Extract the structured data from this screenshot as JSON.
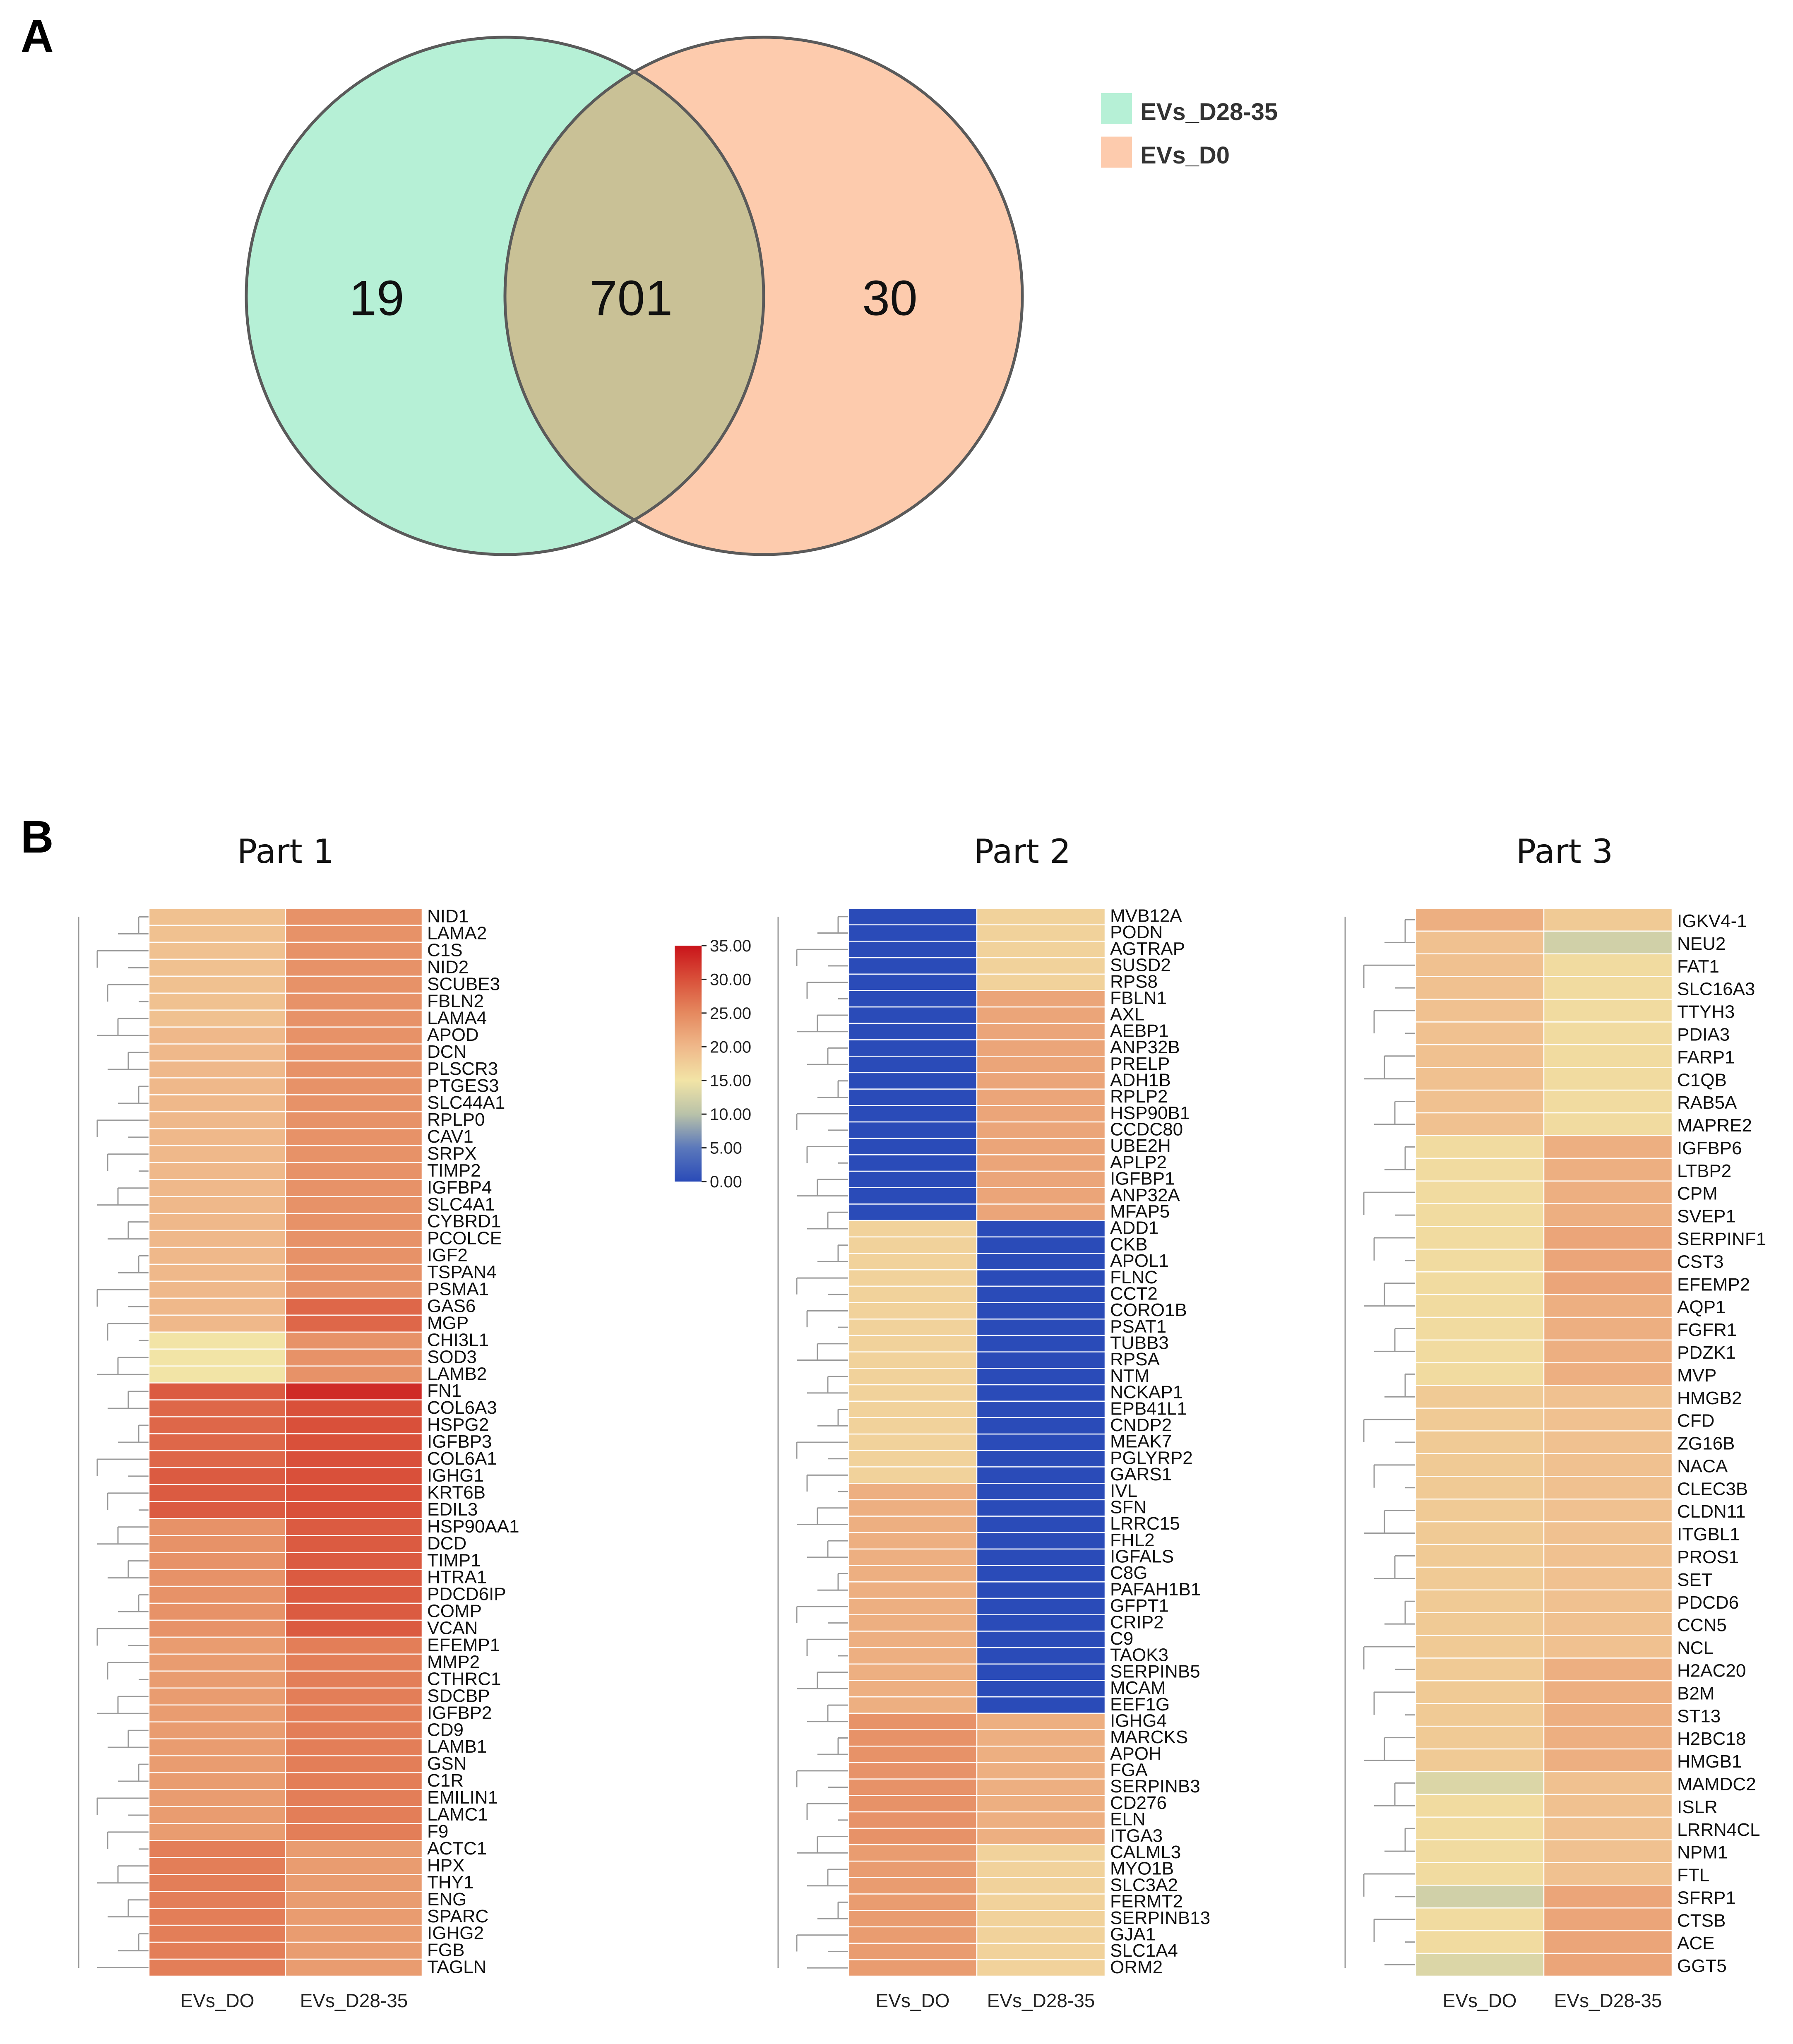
{
  "panels": {
    "a": "A",
    "b": "B"
  },
  "chart_data": [
    {
      "type": "venn",
      "sets": [
        {
          "name": "EVs_D28-35",
          "color": "#b6f0d6",
          "unique": "19"
        },
        {
          "name": "EVs_D0",
          "color": "#fdcbad",
          "unique": "30"
        }
      ],
      "intersection": "701",
      "overlap_color": "#c9c196",
      "legend": [
        {
          "label": "EVs_D28-35",
          "color": "#b6f0d6"
        },
        {
          "label": "EVs_D0",
          "color": "#fdcbad"
        }
      ]
    },
    {
      "type": "heatmap",
      "title": "Part 1",
      "columns": [
        "EVs_DO",
        "EVs_D28-35"
      ],
      "rows": [
        "NID1",
        "LAMA2",
        "C1S",
        "NID2",
        "SCUBE3",
        "FBLN2",
        "LAMA4",
        "APOD",
        "DCN",
        "PLSCR3",
        "PTGES3",
        "SLC44A1",
        "RPLP0",
        "CAV1",
        "SRPX",
        "TIMP2",
        "IGFBP4",
        "SLC4A1",
        "CYBRD1",
        "PCOLCE",
        "IGF2",
        "TSPAN4",
        "PSMA1",
        "GAS6",
        "MGP",
        "CHI3L1",
        "SOD3",
        "LAMB2",
        "FN1",
        "COL6A3",
        "HSPG2",
        "IGFBP3",
        "COL6A1",
        "IGHG1",
        "KRT6B",
        "EDIL3",
        "HSP90AA1",
        "DCD",
        "TIMP1",
        "HTRA1",
        "PDCD6IP",
        "COMP",
        "VCAN",
        "EFEMP1",
        "MMP2",
        "CTHRC1",
        "SDCBP",
        "IGFBP2",
        "CD9",
        "LAMB1",
        "GSN",
        "C1R",
        "EMILIN1",
        "LAMC1",
        "F9",
        "ACTC1",
        "HPX",
        "THY1",
        "ENG",
        "SPARC",
        "IGHG2",
        "FGB",
        "TAGLN"
      ],
      "values": [
        [
          19,
          24
        ],
        [
          19,
          24
        ],
        [
          19,
          24
        ],
        [
          19,
          24
        ],
        [
          19,
          24
        ],
        [
          19,
          24
        ],
        [
          19,
          24
        ],
        [
          20,
          24
        ],
        [
          20,
          24
        ],
        [
          20,
          24
        ],
        [
          20,
          24
        ],
        [
          20,
          24
        ],
        [
          20,
          24
        ],
        [
          20,
          24
        ],
        [
          20,
          24
        ],
        [
          20,
          24
        ],
        [
          20,
          24
        ],
        [
          20,
          24
        ],
        [
          20,
          24
        ],
        [
          20,
          24
        ],
        [
          20,
          24
        ],
        [
          20,
          24
        ],
        [
          20,
          24
        ],
        [
          20,
          28
        ],
        [
          20,
          28
        ],
        [
          15,
          24
        ],
        [
          15,
          24
        ],
        [
          15,
          24
        ],
        [
          29,
          33
        ],
        [
          28,
          30
        ],
        [
          28,
          30
        ],
        [
          28,
          30
        ],
        [
          28,
          30
        ],
        [
          29,
          30
        ],
        [
          29,
          30
        ],
        [
          29,
          30
        ],
        [
          24,
          29
        ],
        [
          24,
          29
        ],
        [
          24,
          29
        ],
        [
          24,
          29
        ],
        [
          24,
          29
        ],
        [
          24,
          29
        ],
        [
          24,
          29
        ],
        [
          23,
          26
        ],
        [
          23,
          26
        ],
        [
          23,
          26
        ],
        [
          23,
          26
        ],
        [
          23,
          26
        ],
        [
          23,
          26
        ],
        [
          23,
          26
        ],
        [
          23,
          26
        ],
        [
          23,
          26
        ],
        [
          23,
          26
        ],
        [
          23,
          26
        ],
        [
          23,
          26
        ],
        [
          26,
          23
        ],
        [
          26,
          23
        ],
        [
          26,
          23
        ],
        [
          26,
          23
        ],
        [
          26,
          23
        ],
        [
          26,
          23
        ],
        [
          26,
          23
        ],
        [
          26,
          23
        ]
      ]
    },
    {
      "type": "heatmap",
      "title": "Part 2",
      "columns": [
        "EVs_DO",
        "EVs_D28-35"
      ],
      "rows": [
        "MVB12A",
        "PODN",
        "AGTRAP",
        "SUSD2",
        "RPS8",
        "FBLN1",
        "AXL",
        "AEBP1",
        "ANP32B",
        "PRELP",
        "ADH1B",
        "RPLP2",
        "HSP90B1",
        "CCDC80",
        "UBE2H",
        "APLP2",
        "IGFBP1",
        "ANP32A",
        "MFAP5",
        "ADD1",
        "CKB",
        "APOL1",
        "FLNC",
        "CCT2",
        "CORO1B",
        "PSAT1",
        "TUBB3",
        "RPSA",
        "NTM",
        "NCKAP1",
        "EPB41L1",
        "CNDP2",
        "MEAK7",
        "PGLYRP2",
        "GARS1",
        "IVL",
        "SFN",
        "LRRC15",
        "FHL2",
        "IGFALS",
        "C8G",
        "PAFAH1B1",
        "GFPT1",
        "CRIP2",
        "C9",
        "TAOK3",
        "SERPINB5",
        "MCAM",
        "EEF1G",
        "IGHG4",
        "MARCKS",
        "APOH",
        "FGA",
        "SERPINB3",
        "CD276",
        "ELN",
        "ITGA3",
        "CALML3",
        "MYO1B",
        "SLC3A2",
        "FERMT2",
        "SERPINB13",
        "GJA1",
        "SLC1A4",
        "ORM2"
      ],
      "values": [
        [
          0,
          17
        ],
        [
          0,
          17
        ],
        [
          0,
          17
        ],
        [
          0,
          17
        ],
        [
          0,
          17
        ],
        [
          0,
          22
        ],
        [
          0,
          22
        ],
        [
          0,
          22
        ],
        [
          0,
          22
        ],
        [
          0,
          22
        ],
        [
          0,
          22
        ],
        [
          0,
          22
        ],
        [
          0,
          22
        ],
        [
          0,
          22
        ],
        [
          0,
          22
        ],
        [
          0,
          22
        ],
        [
          0,
          22
        ],
        [
          0,
          22
        ],
        [
          0,
          22
        ],
        [
          17,
          0
        ],
        [
          17,
          0
        ],
        [
          17,
          0
        ],
        [
          17,
          0
        ],
        [
          17,
          0
        ],
        [
          17,
          0
        ],
        [
          17,
          0
        ],
        [
          17,
          0
        ],
        [
          17,
          0
        ],
        [
          17,
          0
        ],
        [
          17,
          0
        ],
        [
          17,
          0
        ],
        [
          17,
          0
        ],
        [
          17,
          0
        ],
        [
          17,
          0
        ],
        [
          17,
          0
        ],
        [
          21,
          0
        ],
        [
          21,
          0
        ],
        [
          21,
          0
        ],
        [
          21,
          0
        ],
        [
          21,
          0
        ],
        [
          21,
          0
        ],
        [
          21,
          0
        ],
        [
          21,
          0
        ],
        [
          21,
          0
        ],
        [
          21,
          0
        ],
        [
          21,
          0
        ],
        [
          21,
          0
        ],
        [
          21,
          0
        ],
        [
          21,
          0
        ],
        [
          24,
          21
        ],
        [
          24,
          21
        ],
        [
          24,
          21
        ],
        [
          24,
          21
        ],
        [
          24,
          21
        ],
        [
          24,
          21
        ],
        [
          24,
          21
        ],
        [
          24,
          21
        ],
        [
          23,
          17
        ],
        [
          23,
          17
        ],
        [
          23,
          17
        ],
        [
          23,
          17
        ],
        [
          23,
          17
        ],
        [
          23,
          17
        ],
        [
          23,
          17
        ],
        [
          23,
          17
        ]
      ]
    },
    {
      "type": "heatmap",
      "title": "Part 3",
      "columns": [
        "EVs_DO",
        "EVs_D28-35"
      ],
      "rows": [
        "IGKV4-1",
        "NEU2",
        "FAT1",
        "SLC16A3",
        "TTYH3",
        "PDIA3",
        "FARP1",
        "C1QB",
        "RAB5A",
        "MAPRE2",
        "IGFBP6",
        "LTBP2",
        "CPM",
        "SVEP1",
        "SERPINF1",
        "CST3",
        "EFEMP2",
        "AQP1",
        "FGFR1",
        "PDZK1",
        "MVP",
        "HMGB2",
        "CFD",
        "ZG16B",
        "NACA",
        "CLEC3B",
        "CLDN11",
        "ITGBL1",
        "PROS1",
        "SET",
        "PDCD6",
        "CCN5",
        "NCL",
        "H2AC20",
        "B2M",
        "ST13",
        "H2BC18",
        "HMGB1",
        "MAMDC2",
        "ISLR",
        "LRRN4CL",
        "NPM1",
        "FTL",
        "SFRP1",
        "CTSB",
        "ACE",
        "GGT5"
      ],
      "values": [
        [
          21,
          18
        ],
        [
          19,
          12
        ],
        [
          19,
          16
        ],
        [
          19,
          16
        ],
        [
          19,
          16
        ],
        [
          19,
          16
        ],
        [
          19,
          16
        ],
        [
          19,
          16
        ],
        [
          19,
          16
        ],
        [
          19,
          16
        ],
        [
          16,
          21
        ],
        [
          16,
          21
        ],
        [
          16,
          21
        ],
        [
          16,
          21
        ],
        [
          16,
          22
        ],
        [
          16,
          22
        ],
        [
          16,
          22
        ],
        [
          16,
          21
        ],
        [
          16,
          21
        ],
        [
          16,
          21
        ],
        [
          16,
          21
        ],
        [
          18,
          19
        ],
        [
          18,
          19
        ],
        [
          18,
          19
        ],
        [
          18,
          19
        ],
        [
          18,
          19
        ],
        [
          18,
          19
        ],
        [
          18,
          19
        ],
        [
          18,
          19
        ],
        [
          18,
          19
        ],
        [
          18,
          19
        ],
        [
          18,
          19
        ],
        [
          18,
          19
        ],
        [
          18,
          21
        ],
        [
          18,
          21
        ],
        [
          18,
          21
        ],
        [
          18,
          21
        ],
        [
          18,
          21
        ],
        [
          13,
          19
        ],
        [
          16,
          19
        ],
        [
          16,
          19
        ],
        [
          16,
          19
        ],
        [
          16,
          19
        ],
        [
          12,
          22
        ],
        [
          16,
          22
        ],
        [
          16,
          22
        ],
        [
          13,
          22
        ]
      ]
    },
    {
      "type": "colorbar",
      "ticks": [
        "35.00",
        "30.00",
        "25.00",
        "20.00",
        "15.00",
        "10.00",
        "5.00",
        "0.00"
      ],
      "range": [
        0,
        35
      ],
      "colors": [
        "#2a4bb8",
        "#f2e4a6",
        "#c9131a"
      ]
    }
  ]
}
